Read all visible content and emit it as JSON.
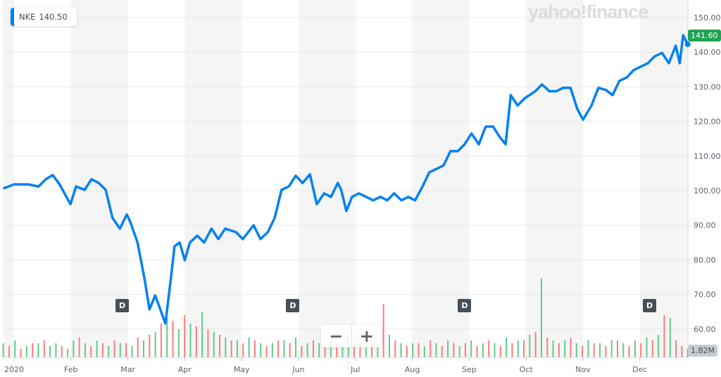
{
  "legend": {
    "symbol": "NKE",
    "value": "140.50"
  },
  "logo": "yahoo!finance",
  "current_price_tag": "141.60",
  "volume_tag": "1.82M",
  "dividend_marker": "D",
  "zoom": {
    "out": "−",
    "in": "+"
  },
  "colors": {
    "line": "#0081f2",
    "up": "#5fcb8c",
    "down": "#ff7b7b",
    "price_tag": "#21a354"
  },
  "chart_data": {
    "type": "line",
    "title": "NKE",
    "ylim": [
      60,
      150
    ],
    "yticks": [
      "150.00",
      "140.00",
      "130.00",
      "120.00",
      "110.00",
      "100.00",
      "90.00",
      "80.00",
      "70.00",
      "60.00"
    ],
    "ytick_values": [
      150,
      140,
      130,
      120,
      110,
      100,
      90,
      80,
      70,
      60
    ],
    "xticks": [
      "2020",
      "Feb",
      "Mar",
      "Apr",
      "May",
      "Jun",
      "Jul",
      "Aug",
      "Sep",
      "Oct",
      "Nov",
      "Dec"
    ],
    "xlim_months": [
      -0.19,
      11.84
    ],
    "dividend_months": [
      1.9,
      4.9,
      7.92,
      11.17
    ],
    "grid": true,
    "series": [
      {
        "name": "NKE",
        "x_months": [
          -0.19,
          0,
          0.25,
          0.43,
          0.56,
          0.68,
          0.8,
          0.99,
          1.09,
          1.24,
          1.36,
          1.49,
          1.61,
          1.73,
          1.86,
          1.98,
          2.04,
          2.17,
          2.29,
          2.38,
          2.48,
          2.57,
          2.66,
          2.75,
          2.82,
          2.91,
          3.0,
          3.09,
          3.22,
          3.34,
          3.47,
          3.59,
          3.71,
          3.9,
          4.02,
          4.21,
          4.33,
          4.46,
          4.58,
          4.7,
          4.83,
          4.95,
          5.07,
          5.2,
          5.32,
          5.45,
          5.57,
          5.69,
          5.75,
          5.84,
          5.94,
          6.06,
          6.19,
          6.31,
          6.44,
          6.56,
          6.68,
          6.81,
          6.93,
          7.05,
          7.18,
          7.3,
          7.43,
          7.55,
          7.67,
          7.8,
          7.92,
          8.04,
          8.17,
          8.29,
          8.42,
          8.54,
          8.64,
          8.73,
          8.85,
          8.97,
          9.16,
          9.28,
          9.41,
          9.53,
          9.65,
          9.78,
          9.9,
          10.0,
          10.15,
          10.27,
          10.4,
          10.52,
          10.64,
          10.77,
          10.89,
          11.01,
          11.14,
          11.26,
          11.39,
          11.51,
          11.63,
          11.7,
          11.76,
          11.84
        ],
        "price": [
          100.6,
          101.8,
          101.8,
          101.2,
          103.3,
          104.5,
          101.8,
          96.1,
          101.2,
          100.2,
          103.3,
          102.2,
          100.2,
          92.1,
          89.0,
          93.1,
          91.1,
          85.0,
          74.8,
          65.7,
          69.7,
          65.7,
          61.6,
          73.8,
          83.9,
          85.0,
          79.9,
          85.0,
          87.0,
          85.0,
          89.0,
          86.0,
          89.0,
          88.0,
          86.0,
          90.0,
          86.0,
          88.0,
          92.1,
          100.2,
          101.2,
          104.3,
          102.2,
          104.7,
          96.1,
          99.2,
          98.2,
          102.2,
          100.2,
          94.1,
          98.2,
          99.2,
          98.2,
          97.2,
          98.2,
          97.2,
          99.2,
          97.2,
          98.2,
          97.2,
          101.2,
          105.3,
          106.3,
          107.3,
          111.4,
          111.4,
          113.4,
          116.5,
          113.4,
          118.5,
          118.5,
          115.4,
          113.4,
          127.6,
          124.6,
          126.6,
          128.7,
          130.7,
          128.7,
          128.7,
          129.7,
          129.7,
          123.6,
          120.5,
          124.6,
          129.7,
          129.1,
          127.6,
          131.7,
          132.7,
          134.8,
          135.8,
          136.8,
          138.8,
          139.8,
          136.8,
          141.9,
          136.8,
          144.9,
          142.3
        ]
      }
    ],
    "volume_millions_signed": [
      5,
      -4,
      6,
      -3,
      4,
      -5,
      5,
      -6,
      4,
      5,
      -4,
      3,
      6,
      -7,
      5,
      -4,
      6,
      -5,
      4,
      -6,
      5,
      -5,
      4,
      -7,
      6,
      -8,
      9,
      -12,
      14,
      -13,
      10,
      -15,
      12,
      -11,
      16,
      -10,
      9,
      -8,
      7,
      -6,
      6,
      -5,
      7,
      -6,
      5,
      -4,
      5,
      -6,
      6,
      -5,
      7,
      -4,
      5,
      -6,
      5,
      -4,
      6,
      -5,
      4,
      7,
      -6,
      -5,
      6,
      -7,
      5,
      -19,
      8,
      -6,
      5,
      -4,
      5,
      -5,
      4,
      -6,
      5,
      -4,
      6,
      -5,
      4,
      -5,
      6,
      -4,
      5,
      -6,
      5,
      -4,
      7,
      -5,
      6,
      -6,
      8,
      -9,
      28,
      -7,
      6,
      -5,
      6,
      -7,
      5,
      -4,
      6,
      -5,
      5,
      -4,
      6,
      -6,
      5,
      -4,
      6,
      -5,
      7,
      -6,
      8,
      -15,
      14,
      -6,
      -4,
      3
    ]
  }
}
